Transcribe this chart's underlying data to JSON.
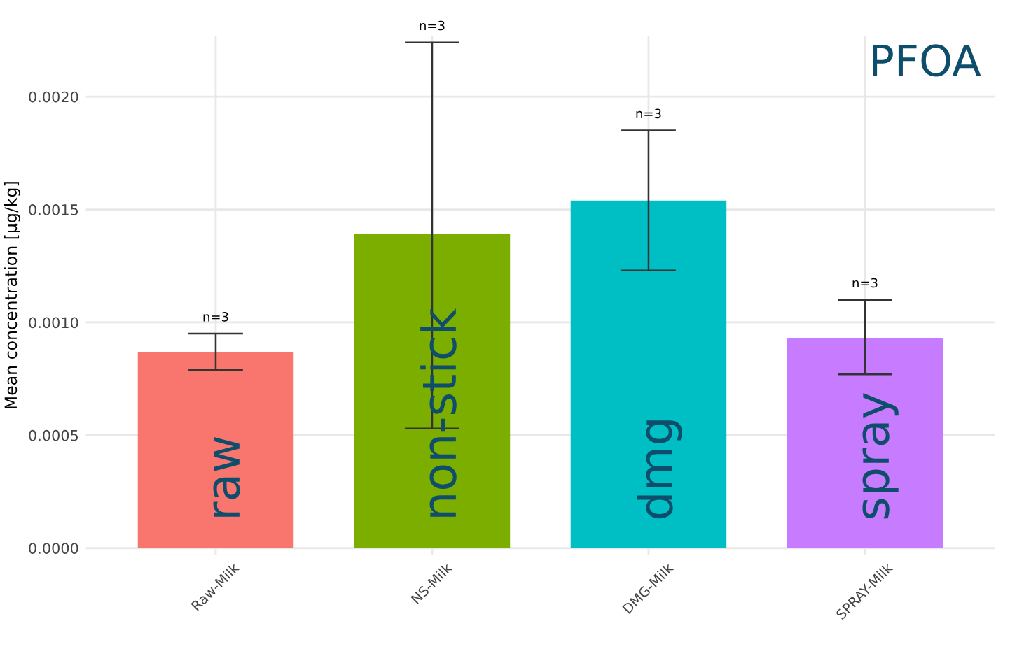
{
  "chart_data": {
    "type": "bar",
    "title": "PFOA",
    "ylabel": "Mean concentration [µg/kg]",
    "categories": [
      "Raw-Milk",
      "NS-Milk",
      "DMG-Milk",
      "SPRAY-Milk"
    ],
    "values": [
      0.00087,
      0.00139,
      0.00154,
      0.00093
    ],
    "colors": [
      "#f8766d",
      "#7cae00",
      "#00bfc4",
      "#c77cff"
    ],
    "errors": [
      [
        0.00079,
        0.00095
      ],
      [
        0.00053,
        0.00224
      ],
      [
        0.00123,
        0.00185
      ],
      [
        0.00077,
        0.0011
      ]
    ],
    "ylim": [
      -3e-05,
      0.00227
    ],
    "yticks": [
      {
        "value": 0,
        "label": "0.0000"
      },
      {
        "value": 0.0005,
        "label": "0.0005"
      },
      {
        "value": 0.001,
        "label": "0.0010"
      },
      {
        "value": 0.0015,
        "label": "0.0015"
      },
      {
        "value": 0.002,
        "label": "0.0020"
      }
    ],
    "grid": true,
    "annotations": [
      {
        "text": "n=3",
        "x": "Raw-Milk",
        "y": 0.00095
      },
      {
        "text": "n=3",
        "x": "NS-Milk",
        "y": 0.00224
      },
      {
        "text": "n=3",
        "x": "DMG-Milk",
        "y": 0.00185
      },
      {
        "text": "n=3",
        "x": "SPRAY-Milk",
        "y": 0.0011
      },
      "raw",
      "non-stick",
      "dmg",
      "spray"
    ]
  }
}
